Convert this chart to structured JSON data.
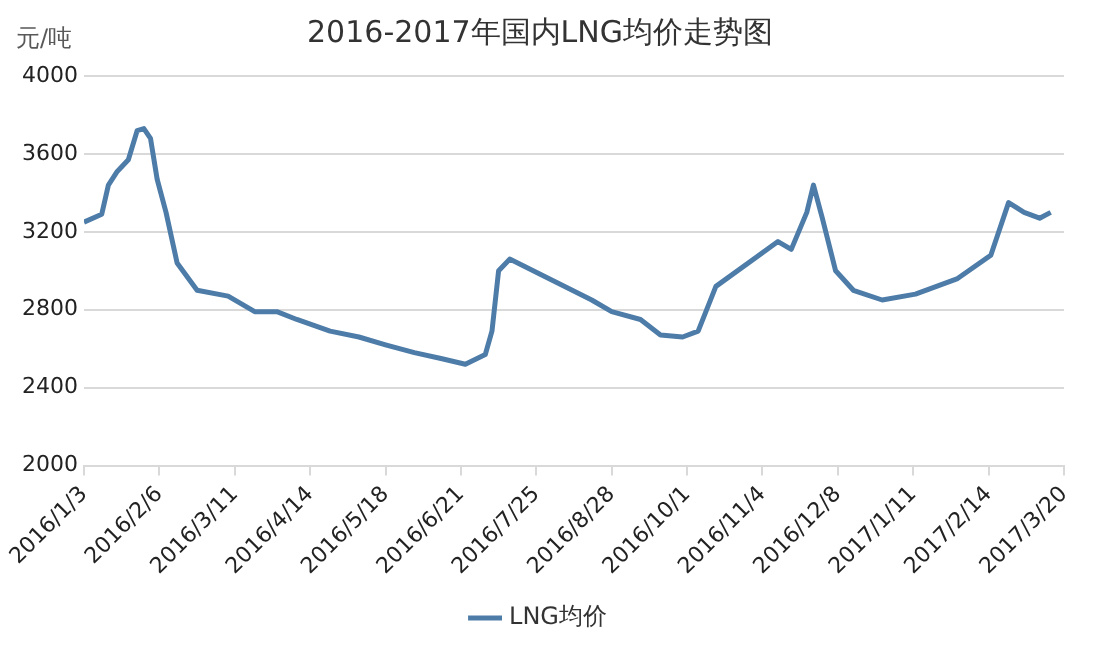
{
  "chart_data": {
    "type": "line",
    "title": "2016-2017年国内LNG均价走势图",
    "ylabel": "元/吨",
    "x": [
      "2016-01-03",
      "2016-01-11",
      "2016-01-14",
      "2016-01-18",
      "2016-01-23",
      "2016-01-27",
      "2016-01-30",
      "2016-02-02",
      "2016-02-05",
      "2016-02-09",
      "2016-02-14",
      "2016-02-23",
      "2016-03-08",
      "2016-03-20",
      "2016-03-30",
      "2016-04-08",
      "2016-04-23",
      "2016-05-06",
      "2016-05-18",
      "2016-05-31",
      "2016-06-12",
      "2016-06-23",
      "2016-07-02",
      "2016-07-05",
      "2016-07-08",
      "2016-07-13",
      "2016-08-19",
      "2016-08-28",
      "2016-09-10",
      "2016-09-19",
      "2016-09-29",
      "2016-10-06",
      "2016-10-14",
      "2016-11-11",
      "2016-11-17",
      "2016-11-24",
      "2016-11-27",
      "2016-12-01",
      "2016-12-07",
      "2016-12-15",
      "2016-12-28",
      "2017-01-12",
      "2017-01-31",
      "2017-02-15",
      "2017-02-23",
      "2017-03-02",
      "2017-03-09",
      "2017-03-14"
    ],
    "series": [
      {
        "name": "LNG均价",
        "color": "#4e7ca8",
        "values": [
          3250,
          3290,
          3440,
          3510,
          3570,
          3720,
          3730,
          3680,
          3470,
          3300,
          3040,
          2900,
          2870,
          2790,
          2790,
          2750,
          2690,
          2660,
          2620,
          2580,
          2550,
          2520,
          2570,
          2690,
          3000,
          3060,
          2850,
          2790,
          2750,
          2670,
          2660,
          2690,
          2920,
          3150,
          3110,
          3300,
          3440,
          3270,
          3000,
          2900,
          2850,
          2880,
          2960,
          3080,
          3350,
          3300,
          3270,
          3300
        ]
      }
    ],
    "xlim": [
      "2016-01-03",
      "2017-03-20"
    ],
    "xticks": [
      {
        "value": "2016-01-03",
        "label": "2016/1/3"
      },
      {
        "value": "2016-02-06",
        "label": "2016/2/6"
      },
      {
        "value": "2016-03-11",
        "label": "2016/3/11"
      },
      {
        "value": "2016-04-14",
        "label": "2016/4/14"
      },
      {
        "value": "2016-05-18",
        "label": "2016/5/18"
      },
      {
        "value": "2016-06-21",
        "label": "2016/6/21"
      },
      {
        "value": "2016-07-25",
        "label": "2016/7/25"
      },
      {
        "value": "2016-08-28",
        "label": "2016/8/28"
      },
      {
        "value": "2016-10-01",
        "label": "2016/10/1"
      },
      {
        "value": "2016-11-04",
        "label": "2016/11/4"
      },
      {
        "value": "2016-12-08",
        "label": "2016/12/8"
      },
      {
        "value": "2017-01-11",
        "label": "2017/1/11"
      },
      {
        "value": "2017-02-14",
        "label": "2017/2/14"
      },
      {
        "value": "2017-03-20",
        "label": "2017/3/20"
      }
    ],
    "ylim": [
      2000,
      4000
    ],
    "yticks": [
      2000,
      2400,
      2800,
      3200,
      3600,
      4000
    ],
    "grid": "y",
    "legend": "bottom",
    "marker": "none",
    "line_style": "solid"
  }
}
